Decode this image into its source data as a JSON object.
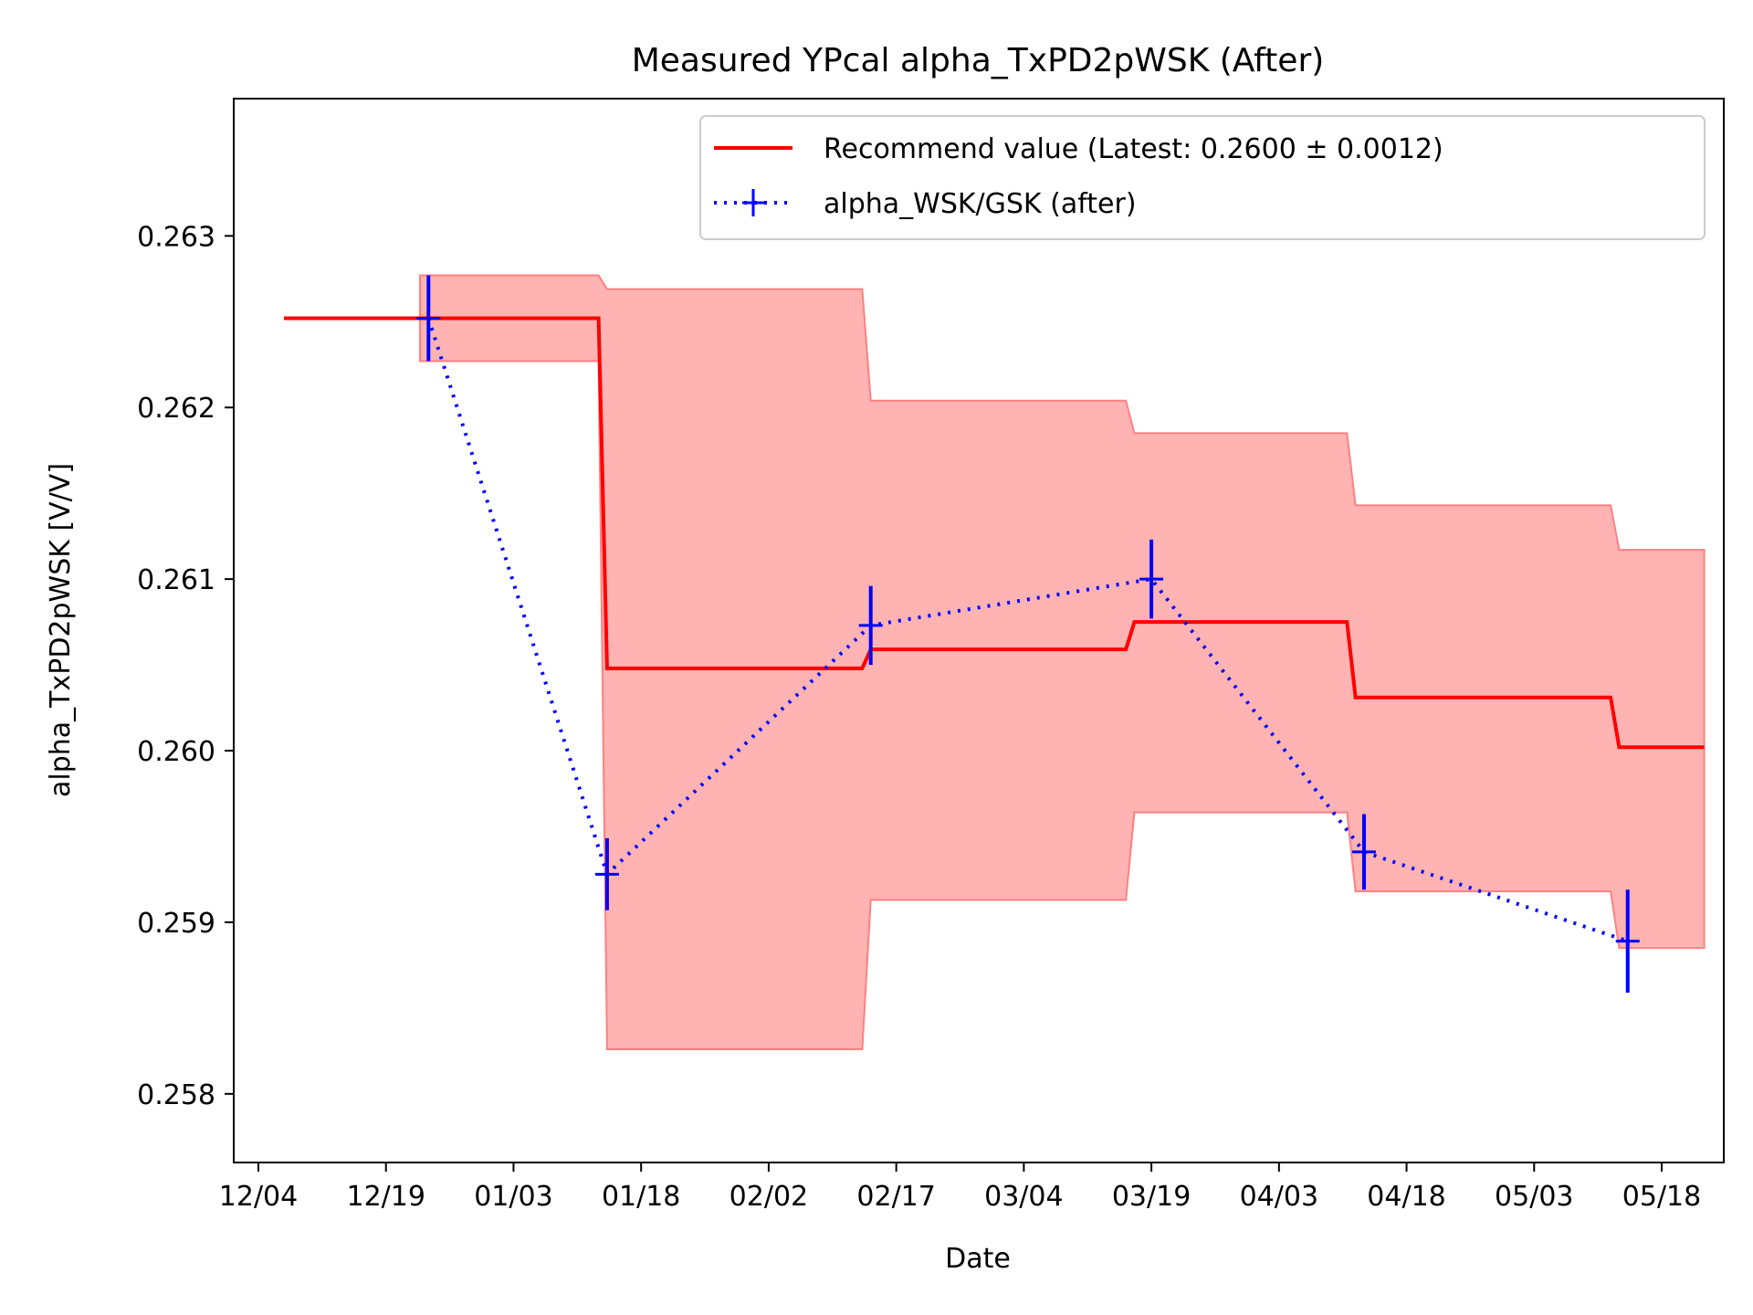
{
  "chart_data": {
    "type": "line",
    "title": "Measured YPcal alpha_TxPD2pWSK (After)",
    "xlabel": "Date",
    "ylabel": "alpha_TxPD2pWSK [V/V]",
    "x_tick_labels": [
      "12/04",
      "12/19",
      "01/03",
      "01/18",
      "02/02",
      "02/17",
      "03/04",
      "03/19",
      "04/03",
      "04/18",
      "05/03",
      "05/18"
    ],
    "y_tick_labels": [
      "0.258",
      "0.259",
      "0.260",
      "0.261",
      "0.262",
      "0.263"
    ],
    "y_ticks": [
      0.258,
      0.259,
      0.26,
      0.261,
      0.262,
      0.263
    ],
    "ylim": [
      0.2576,
      0.2638
    ],
    "grid": false,
    "legend_position": "top-right",
    "colors": {
      "recommend": "#ff0000",
      "band": "#ff8080",
      "measured": "#0000ff"
    },
    "series": [
      {
        "name": "Recommend value (Latest: 0.2600 ± 0.0012)",
        "style": "solid step line with shaded uncertainty band",
        "x": [
          "12/07",
          "12/23",
          "01/13",
          "01/14",
          "02/13",
          "02/14",
          "03/16",
          "03/17",
          "04/11",
          "04/12",
          "05/12",
          "05/13",
          "05/23"
        ],
        "values": [
          0.26252,
          0.26252,
          0.26252,
          0.26048,
          0.26048,
          0.26059,
          0.26059,
          0.26075,
          0.26075,
          0.26031,
          0.26031,
          0.26002,
          0.26002
        ],
        "band_upper": [
          null,
          0.26277,
          0.26277,
          0.26269,
          0.26269,
          0.26204,
          0.26204,
          0.26185,
          0.26185,
          0.26143,
          0.26143,
          0.26117,
          0.26117
        ],
        "band_lower": [
          null,
          0.26227,
          0.26227,
          0.25826,
          0.25826,
          0.25913,
          0.25913,
          0.25964,
          0.25964,
          0.25918,
          0.25918,
          0.25885,
          0.25885
        ]
      },
      {
        "name": "alpha_WSK/GSK (after)",
        "style": "dotted line with error bars",
        "x": [
          "12/24",
          "01/14",
          "02/14",
          "03/19",
          "04/13",
          "05/14"
        ],
        "values": [
          0.26252,
          0.25928,
          0.26073,
          0.261,
          0.25941,
          0.25889
        ],
        "errors": [
          0.00025,
          0.00021,
          0.00023,
          0.00023,
          0.00022,
          0.0003
        ]
      }
    ]
  }
}
